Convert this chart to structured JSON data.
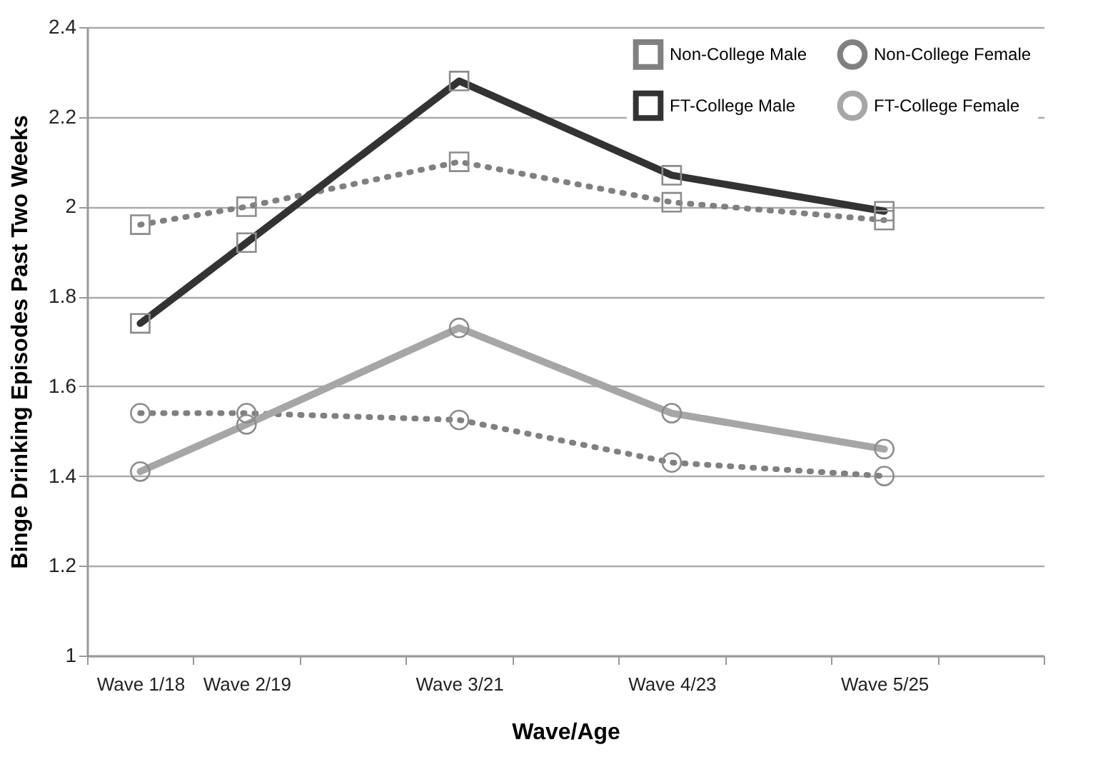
{
  "chart_data": {
    "type": "line",
    "xlabel": "Wave/Age",
    "ylabel": "Binge Drinking Episodes Past Two Weeks",
    "categories": [
      "Wave 1/18",
      "Wave 2/19",
      null,
      "Wave 3/21",
      null,
      "Wave 4/23",
      null,
      "Wave 5/25",
      null
    ],
    "ylim": [
      1,
      2.4
    ],
    "yticks": [
      1,
      1.2,
      1.4,
      1.6,
      1.8,
      2,
      2.2,
      2.4
    ],
    "grid": "y",
    "legend": "top right",
    "series": [
      {
        "name": "Non-College Male",
        "color": "#808080",
        "line_style": "dotted",
        "marker": "square",
        "x": [
          "Wave 1/18",
          "Wave 2/19",
          "Wave 3/21",
          "Wave 4/23",
          "Wave 5/25"
        ],
        "values": [
          1.96,
          2.0,
          2.1,
          2.01,
          1.97
        ]
      },
      {
        "name": "FT-College Male",
        "color": "#333333",
        "line_style": "solid",
        "marker": "square",
        "x": [
          "Wave 1/18",
          "Wave 2/19",
          "Wave 3/21",
          "Wave 4/23",
          "Wave 5/25"
        ],
        "values": [
          1.74,
          1.92,
          2.28,
          2.07,
          1.99
        ]
      },
      {
        "name": "Non-College Female",
        "color": "#808080",
        "line_style": "dotted",
        "marker": "circle",
        "x": [
          "Wave 1/18",
          "Wave 2/19",
          "Wave 3/21",
          "Wave 4/23",
          "Wave 5/25"
        ],
        "values": [
          1.54,
          1.54,
          1.525,
          1.43,
          1.4
        ]
      },
      {
        "name": "FT-College Female",
        "color": "#a6a6a6",
        "line_style": "solid",
        "marker": "circle",
        "x": [
          "Wave 1/18",
          "Wave 2/19",
          "Wave 3/21",
          "Wave 4/23",
          "Wave 5/25"
        ],
        "values": [
          1.41,
          1.515,
          1.73,
          1.54,
          1.46
        ]
      }
    ]
  }
}
